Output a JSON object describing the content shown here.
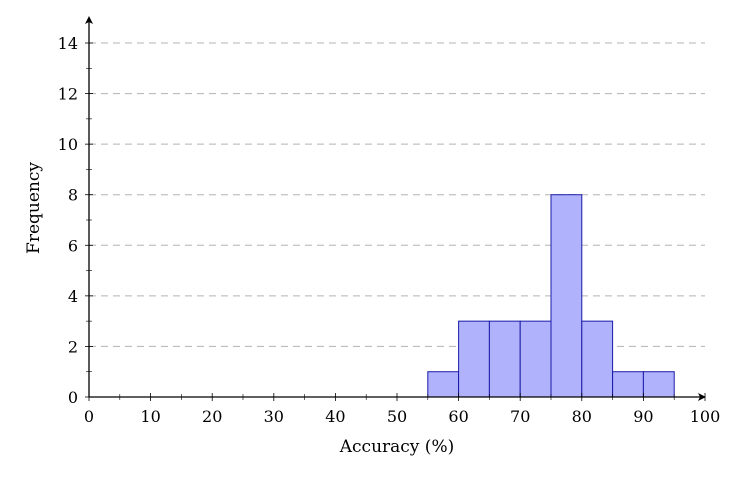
{
  "chart_data": {
    "type": "bar",
    "subtype": "histogram",
    "title": "",
    "xlabel": "Accuracy (%)",
    "ylabel": "Frequency",
    "xlim": [
      0,
      100
    ],
    "ylim": [
      0,
      15
    ],
    "x_ticks": [
      0,
      10,
      20,
      30,
      40,
      50,
      60,
      70,
      80,
      90,
      100
    ],
    "x_minor_ticks": [
      5,
      15,
      25,
      35,
      45,
      55,
      65,
      75,
      85,
      95
    ],
    "y_ticks": [
      0,
      2,
      4,
      6,
      8,
      10,
      12,
      14
    ],
    "y_minor_ticks": [
      1,
      3,
      5,
      7,
      9,
      11,
      13
    ],
    "grid": "horizontal dashed at major y ticks",
    "legend": null,
    "bins": [
      {
        "start": 55,
        "end": 60,
        "count": 1
      },
      {
        "start": 60,
        "end": 65,
        "count": 3
      },
      {
        "start": 65,
        "end": 70,
        "count": 3
      },
      {
        "start": 70,
        "end": 75,
        "count": 3
      },
      {
        "start": 75,
        "end": 80,
        "count": 8
      },
      {
        "start": 80,
        "end": 85,
        "count": 3
      },
      {
        "start": 85,
        "end": 90,
        "count": 1
      },
      {
        "start": 90,
        "end": 95,
        "count": 1
      }
    ],
    "categories": [
      "55-60",
      "60-65",
      "65-70",
      "70-75",
      "75-80",
      "80-85",
      "85-90",
      "90-95"
    ],
    "values": [
      1,
      3,
      3,
      3,
      8,
      3,
      1,
      1
    ],
    "colors": {
      "bar_fill": "#b0b3fb",
      "bar_stroke": "#1a1aa8",
      "grid": "#b3b3b3",
      "axis": "#000000"
    }
  }
}
